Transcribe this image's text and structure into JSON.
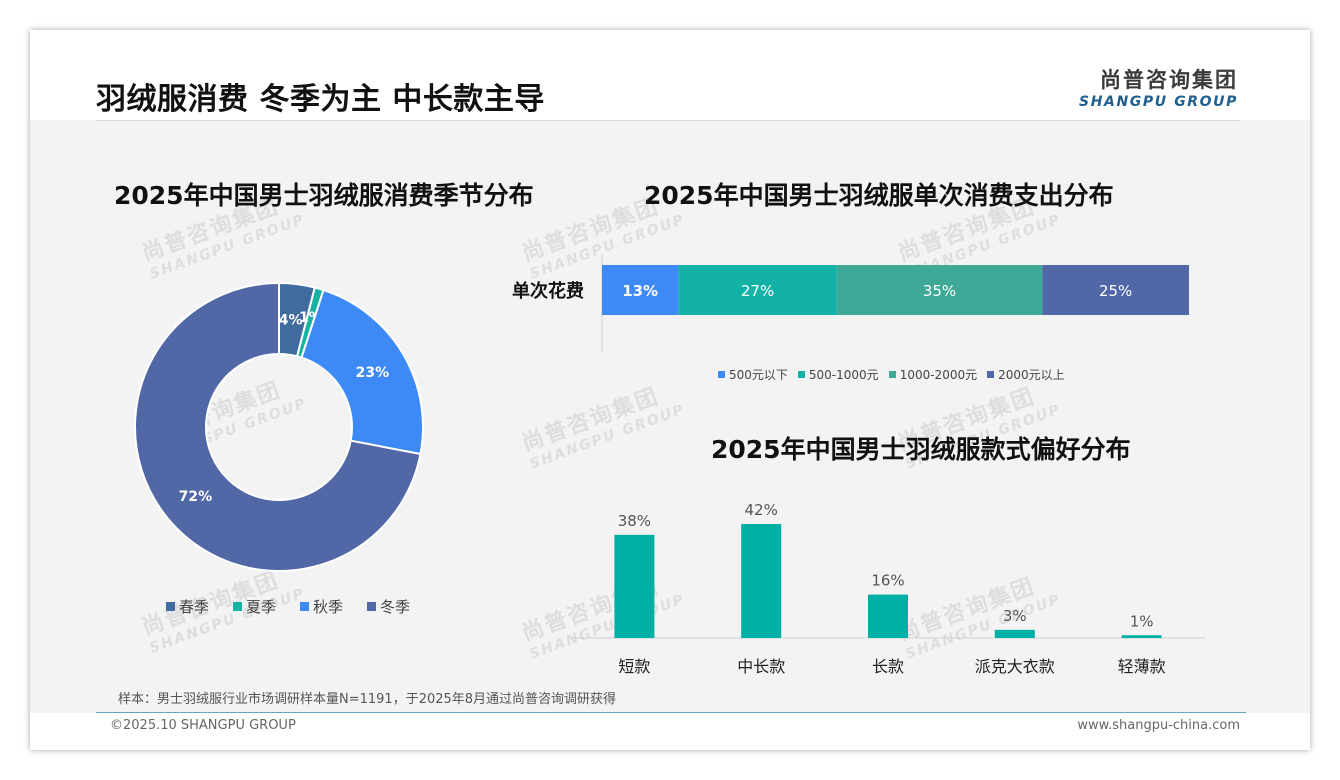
{
  "header": {
    "title": "羽绒服消费 冬季为主 中长款主导",
    "brand_cn": "尚普咨询集团",
    "brand_en": "SHANGPU GROUP"
  },
  "watermark": {
    "cn": "尚普咨询集团",
    "en": "SHANGPU GROUP"
  },
  "footer": {
    "note": "样本：男士羽绒服行业市场调研样本量N=1191，于2025年8月通过尚普咨询调研获得",
    "copyright": "©2025.10 SHANGPU GROUP",
    "website": "www.shangpu-china.com"
  },
  "colors": {
    "spring": "#3f6b9e",
    "summer": "#16b2a4",
    "autumn": "#3d8af7",
    "winter": "#5167a6",
    "under500": "#3d8af7",
    "r500_1000": "#12b2a7",
    "r1000_2000": "#40a896",
    "over2000": "#5167a6",
    "style_bar": "#00b0a5"
  },
  "chart_data": [
    {
      "type": "pie",
      "title": "2025年中国男士羽绒服消费季节分布",
      "labels": [
        "春季",
        "夏季",
        "秋季",
        "冬季"
      ],
      "values": [
        4,
        1,
        23,
        72
      ],
      "data_labels": [
        "4%",
        "1%",
        "23%",
        "72%"
      ],
      "donut": true,
      "legend": "bottom"
    },
    {
      "type": "bar",
      "orientation": "horizontal-stacked",
      "title": "2025年中国男士羽绒服单次消费支出分布",
      "categories": [
        "单次花费"
      ],
      "series": [
        {
          "name": "500元以下",
          "values": [
            13
          ],
          "label": "13%"
        },
        {
          "name": "500-1000元",
          "values": [
            27
          ],
          "label": "27%"
        },
        {
          "name": "1000-2000元",
          "values": [
            35
          ],
          "label": "35%"
        },
        {
          "name": "2000元以上",
          "values": [
            25
          ],
          "label": "25%"
        }
      ],
      "legend": "bottom"
    },
    {
      "type": "bar",
      "title": "2025年中国男士羽绒服款式偏好分布",
      "categories": [
        "短款",
        "中长款",
        "长款",
        "派克大衣款",
        "轻薄款"
      ],
      "values": [
        38,
        42,
        16,
        3,
        1
      ],
      "data_labels": [
        "38%",
        "42%",
        "16%",
        "3%",
        "1%"
      ],
      "ylim": [
        0,
        42
      ]
    }
  ]
}
